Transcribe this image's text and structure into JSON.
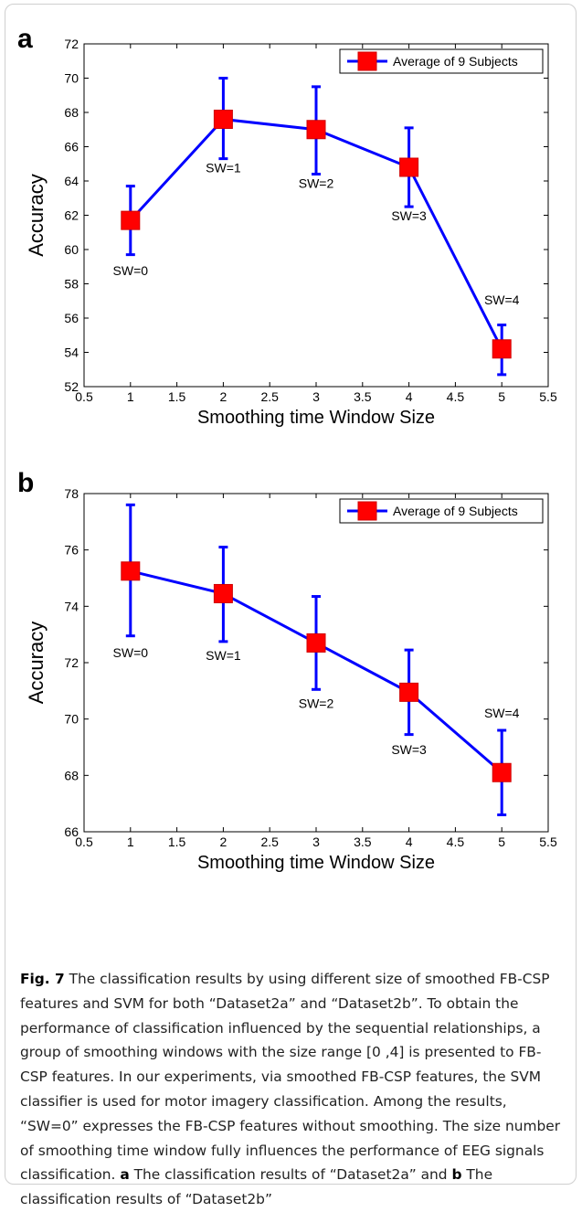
{
  "panels": [
    {
      "letter": "a"
    },
    {
      "letter": "b"
    }
  ],
  "chart_data": [
    {
      "type": "line",
      "panel": "a",
      "xlabel": "Smoothing time Window Size",
      "ylabel": "Accuracy",
      "xlim": [
        0.5,
        5.5
      ],
      "ylim": [
        52,
        72
      ],
      "xticks": [
        "0.5",
        "1",
        "1.5",
        "2",
        "2.5",
        "3",
        "3.5",
        "4",
        "4.5",
        "5",
        "5.5"
      ],
      "yticks": [
        "52",
        "54",
        "56",
        "58",
        "60",
        "62",
        "64",
        "66",
        "68",
        "70",
        "72"
      ],
      "legend": {
        "label": "Average of 9 Subjects",
        "position": "top-right"
      },
      "grid": false,
      "series": [
        {
          "name": "Average of 9 Subjects",
          "color": "#0000ff",
          "marker_color": "#ff0000",
          "x": [
            1,
            2,
            3,
            4,
            5
          ],
          "y": [
            61.7,
            67.6,
            67.0,
            64.8,
            54.2
          ],
          "err_low": [
            59.7,
            65.3,
            64.4,
            62.5,
            52.7
          ],
          "err_high": [
            63.7,
            70.0,
            69.5,
            67.1,
            55.6
          ]
        }
      ],
      "point_labels": [
        {
          "text": "SW=0",
          "x": 1,
          "y": 58.5
        },
        {
          "text": "SW=1",
          "x": 2,
          "y": 64.5
        },
        {
          "text": "SW=2",
          "x": 3,
          "y": 63.6
        },
        {
          "text": "SW=3",
          "x": 4,
          "y": 61.7
        },
        {
          "text": "SW=4",
          "x": 5,
          "y": 56.8
        }
      ]
    },
    {
      "type": "line",
      "panel": "b",
      "xlabel": "Smoothing time Window Size",
      "ylabel": "Accuracy",
      "xlim": [
        0.5,
        5.5
      ],
      "ylim": [
        66,
        78
      ],
      "xticks": [
        "0.5",
        "1",
        "1.5",
        "2",
        "2.5",
        "3",
        "3.5",
        "4",
        "4.5",
        "5",
        "5.5"
      ],
      "yticks": [
        "66",
        "68",
        "70",
        "72",
        "74",
        "76",
        "78"
      ],
      "legend": {
        "label": "Average of 9 Subjects",
        "position": "top-right"
      },
      "grid": false,
      "series": [
        {
          "name": "Average of 9 Subjects",
          "color": "#0000ff",
          "marker_color": "#ff0000",
          "x": [
            1,
            2,
            3,
            4,
            5
          ],
          "y": [
            75.25,
            74.45,
            72.7,
            70.95,
            68.1
          ],
          "err_low": [
            72.95,
            72.75,
            71.05,
            69.45,
            66.6
          ],
          "err_high": [
            77.6,
            76.1,
            74.35,
            72.45,
            69.6
          ]
        }
      ],
      "point_labels": [
        {
          "text": "SW=0",
          "x": 1,
          "y": 72.2
        },
        {
          "text": "SW=1",
          "x": 2,
          "y": 72.1
        },
        {
          "text": "SW=2",
          "x": 3,
          "y": 70.4
        },
        {
          "text": "SW=3",
          "x": 4,
          "y": 68.75
        },
        {
          "text": "SW=4",
          "x": 5,
          "y": 70.05
        }
      ]
    }
  ],
  "caption": {
    "fig_label": "Fig. 7",
    "text_1": " The classification results by using different size of smoothed FB-CSP features and SVM for both “Dataset2a” and “Dataset2b”. To obtain the performance of classification influenced by the sequential relationships, a group of smoothing windows with the size range [0 ,4] is presented to FB-CSP features. In our experiments, via smoothed FB-CSP features, the SVM classifier is used for motor imagery classification. Among the results, “SW=0” expresses the FB-CSP features without smoothing. The size number of smoothing time window fully influences the performance of EEG signals classification. ",
    "label_a": "a",
    "text_2": " The classification results of “Dataset2a” and ",
    "label_b": "b",
    "text_3": " The classification results of “Dataset2b”"
  }
}
